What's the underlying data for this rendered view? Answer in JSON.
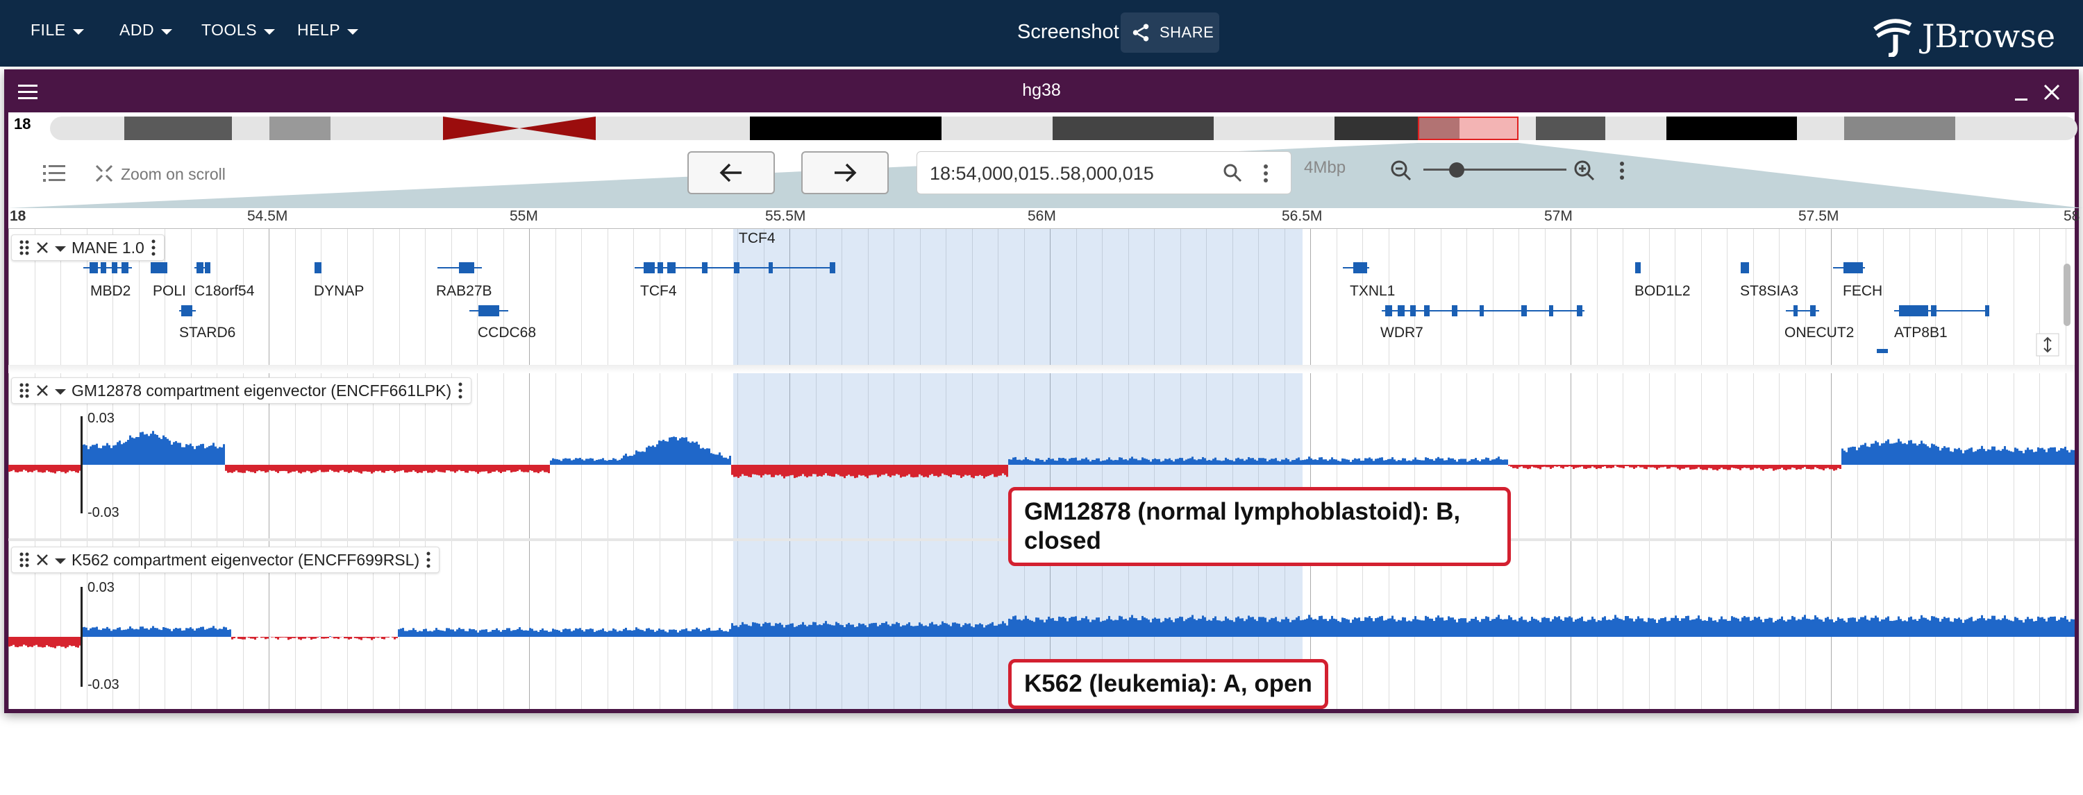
{
  "menubar": {
    "items": [
      "FILE",
      "ADD",
      "TOOLS",
      "HELP"
    ],
    "session_name": "Screenshot",
    "share_label": "SHARE",
    "logo_text": "JBrowse"
  },
  "view": {
    "assembly": "hg38",
    "chromosome": "18",
    "location": "18:54,000,015..58,000,015",
    "scale_label": "4Mbp",
    "zoom_on_scroll_label": "Zoom on scroll",
    "zoom_fraction": 0.2
  },
  "ruler": {
    "start_label": "18",
    "ticks": [
      "54.5M",
      "55M",
      "55.5M",
      "56M",
      "56.5M",
      "57M",
      "57.5M",
      "58"
    ]
  },
  "tracks": [
    {
      "name": "MANE 1.0",
      "type": "genes"
    },
    {
      "name": "GM12878 compartment eigenvector (ENCFF661LPK)",
      "ymax": "0.03",
      "ymin": "-0.03"
    },
    {
      "name": "K562 compartment eigenvector (ENCFF699RSL)",
      "ymax": "0.03",
      "ymin": "-0.03"
    }
  ],
  "genes": [
    "MBD2",
    "POLI",
    "C18orf54",
    "DYNAP",
    "RAB27B",
    "TCF4",
    "TXNL1",
    "BOD1L2",
    "ST8SIA3",
    "FECH",
    "STARD6",
    "CCDC68",
    "WDR7",
    "ONECUT2",
    "ATP8B1"
  ],
  "highlight_label": "TCF4",
  "callouts": {
    "gm": "GM12878 (normal lymphoblastoid): B, closed",
    "k562": "K562 (leukemia): A, open"
  },
  "colors": {
    "topbar": "#0e2a47",
    "view_header": "#4a1545",
    "positive": "#1f67c9",
    "negative": "#d6232e",
    "callout_border": "#d32030",
    "gene": "#1a5fb4"
  }
}
